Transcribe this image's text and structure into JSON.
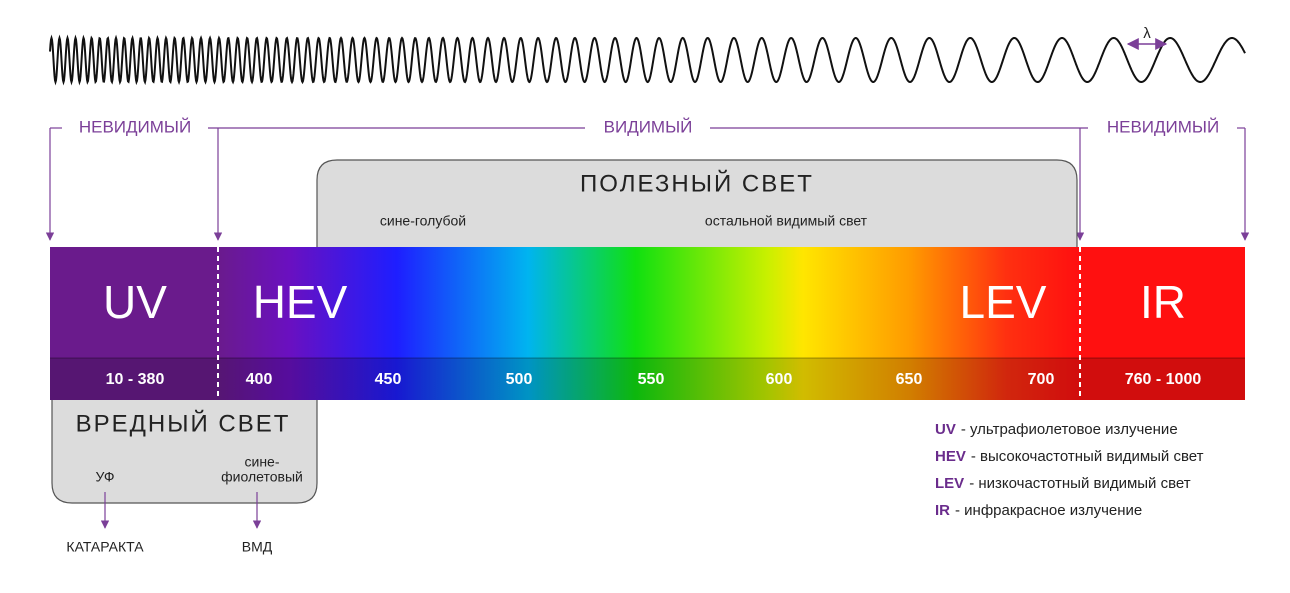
{
  "wave": {
    "label": "λ"
  },
  "regions": {
    "invisible_left": "НЕВИДИМЫЙ",
    "visible": "ВИДИМЫЙ",
    "invisible_right": "НЕВИДИМЫЙ"
  },
  "useful_light": {
    "title": "ПОЛЕЗНЫЙ СВЕТ",
    "blue": "сине-голубой",
    "rest": "остальной видимый свет"
  },
  "bands": [
    "UV",
    "HEV",
    "LEV",
    "IR"
  ],
  "scale": [
    "10 - 380",
    "400",
    "450",
    "500",
    "550",
    "600",
    "650",
    "700",
    "760 - 1000"
  ],
  "harmful_light": {
    "title": "ВРЕДНЫЙ СВЕТ",
    "items": [
      {
        "label": [
          "УФ"
        ],
        "outcome": "КАТАРАКТА"
      },
      {
        "label": [
          "сине-",
          "фиолетовый"
        ],
        "outcome": "ВМД"
      }
    ]
  },
  "legend": [
    {
      "abbr": "UV",
      "text": "- ультрафиолетовое излучение"
    },
    {
      "abbr": "HEV",
      "text": "- высокочастотный видимый свет"
    },
    {
      "abbr": "LEV",
      "text": "- низкочастотный видимый свет"
    },
    {
      "abbr": "IR",
      "text": "- инфракрасное излучение"
    }
  ]
}
